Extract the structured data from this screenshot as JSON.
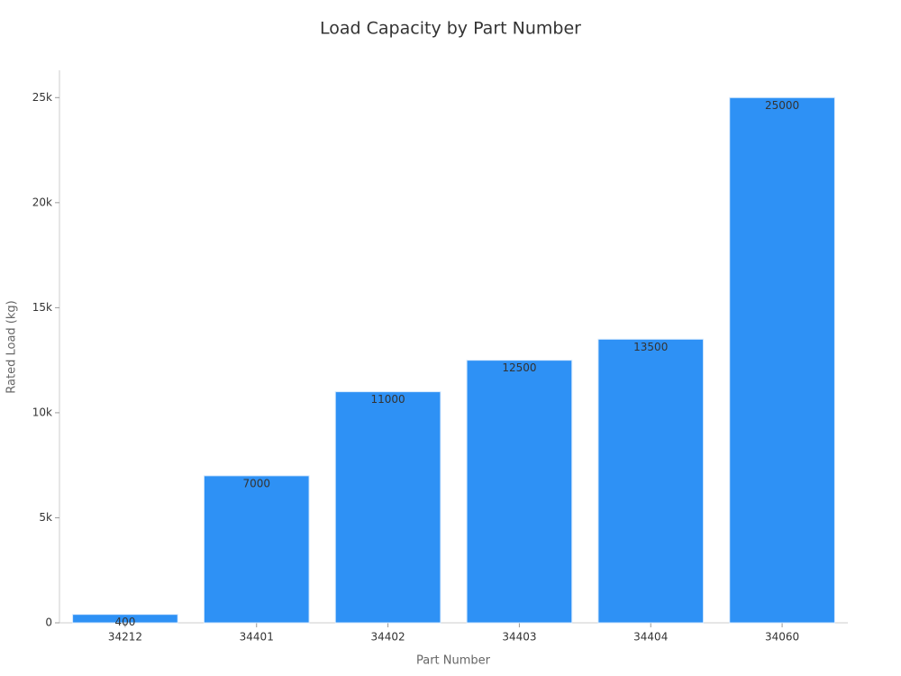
{
  "chart_data": {
    "type": "bar",
    "title": "Load Capacity by Part Number",
    "x_label": "Part Number",
    "y_label": "Rated Load (kg)",
    "categories": [
      "34212",
      "34401",
      "34402",
      "34403",
      "34404",
      "34060"
    ],
    "values": [
      400,
      7000,
      11000,
      12500,
      13500,
      25000
    ],
    "color": "#2e91f5",
    "ylim": [
      0,
      26300
    ],
    "yticks": [
      0,
      {
        "value": 5000,
        "label": "5k"
      },
      {
        "value": 10000,
        "label": "10k"
      },
      {
        "value": 15000,
        "label": "15k"
      },
      {
        "value": 20000,
        "label": "20k"
      },
      {
        "value": 25000,
        "label": "25k"
      }
    ],
    "grid": false
  }
}
